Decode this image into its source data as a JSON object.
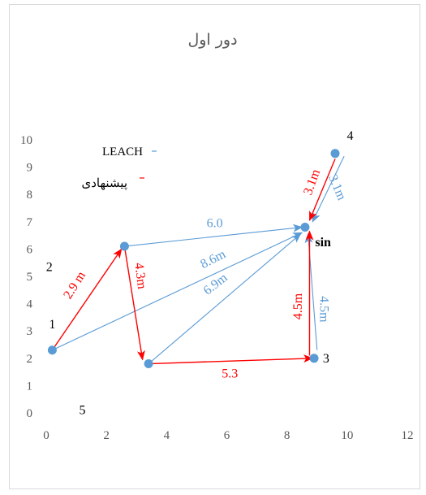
{
  "chart_data": {
    "type": "scatter",
    "title": "دور اول",
    "xlim": [
      0,
      12
    ],
    "ylim": [
      0,
      10
    ],
    "x_ticks": [
      "0",
      "2",
      "4",
      "6",
      "8",
      "10",
      "12"
    ],
    "y_ticks": [
      "0",
      "1",
      "2",
      "3",
      "4",
      "5",
      "6",
      "7",
      "8",
      "9",
      "10"
    ],
    "legend": [
      {
        "label": "LEACH",
        "color": "#5b9bd5"
      },
      {
        "label": "پیشنهادی",
        "color": "#ff0000"
      }
    ],
    "points": [
      {
        "x": 0.2,
        "y": 2.3
      },
      {
        "x": 2.6,
        "y": 6.1
      },
      {
        "x": 3.4,
        "y": 1.8
      },
      {
        "x": 8.9,
        "y": 2.0
      },
      {
        "x": 9.6,
        "y": 9.5
      },
      {
        "x": 8.6,
        "y": 6.8
      }
    ],
    "node_labels": [
      {
        "text": "1",
        "x": 0.2,
        "y": 3.1
      },
      {
        "text": "2",
        "x": 0.1,
        "y": 5.2
      },
      {
        "text": "3",
        "x": 9.3,
        "y": 1.85
      },
      {
        "text": "4",
        "x": 10.1,
        "y": 10.0
      },
      {
        "text": "5",
        "x": 1.2,
        "y": -0.05
      },
      {
        "text": "sin",
        "x": 9.2,
        "y": 6.1,
        "bold": true
      }
    ],
    "edges": [
      {
        "series": "LEACH",
        "from": [
          2.6,
          6.1
        ],
        "to": [
          8.5,
          6.8
        ],
        "label": "6.0",
        "label_at": [
          5.6,
          6.8
        ],
        "angle": 0
      },
      {
        "series": "LEACH",
        "from": [
          0.2,
          2.3
        ],
        "to": [
          8.5,
          6.6
        ],
        "label": "8.6m",
        "label_at": [
          5.6,
          5.5
        ],
        "angle": -27
      },
      {
        "series": "LEACH",
        "from": [
          3.4,
          1.8
        ],
        "to": [
          8.45,
          6.55
        ],
        "label": "6.9m",
        "label_at": [
          5.7,
          4.6
        ],
        "angle": -38
      },
      {
        "series": "LEACH",
        "from": [
          9.0,
          2.3
        ],
        "to": [
          8.7,
          6.55
        ],
        "label": "4.5m",
        "label_at": [
          9.1,
          3.8
        ],
        "angle": 90
      },
      {
        "series": "LEACH",
        "from": [
          9.9,
          9.4
        ],
        "to": [
          8.85,
          7.0
        ],
        "label": "3.1m",
        "label_at": [
          9.55,
          8.2
        ],
        "angle": 67
      },
      {
        "series": "پیشنهادی",
        "from": [
          0.2,
          2.3
        ],
        "to": [
          2.5,
          6.0
        ],
        "label": "2.9 m",
        "label_at": [
          1.05,
          4.6
        ],
        "angle": -58
      },
      {
        "series": "پیشنهادی",
        "from": [
          2.6,
          6.1
        ],
        "to": [
          3.2,
          1.95
        ],
        "label": "4.3m",
        "label_at": [
          3.0,
          5.0
        ],
        "angle": 83
      },
      {
        "series": "پیشنهادی",
        "from": [
          3.4,
          1.8
        ],
        "to": [
          8.85,
          2.0
        ],
        "label": "5.3",
        "label_at": [
          6.1,
          1.3
        ],
        "angle": 0
      },
      {
        "series": "پیشنهادی",
        "from": [
          8.75,
          2.1
        ],
        "to": [
          8.75,
          6.65
        ],
        "label": "4.5m",
        "label_at": [
          8.5,
          3.9
        ],
        "angle": -90
      },
      {
        "series": "پیشنهادی",
        "from": [
          9.6,
          9.3
        ],
        "to": [
          8.75,
          7.05
        ],
        "label": "3.1m",
        "label_at": [
          8.95,
          8.4
        ],
        "angle": -70
      }
    ]
  }
}
